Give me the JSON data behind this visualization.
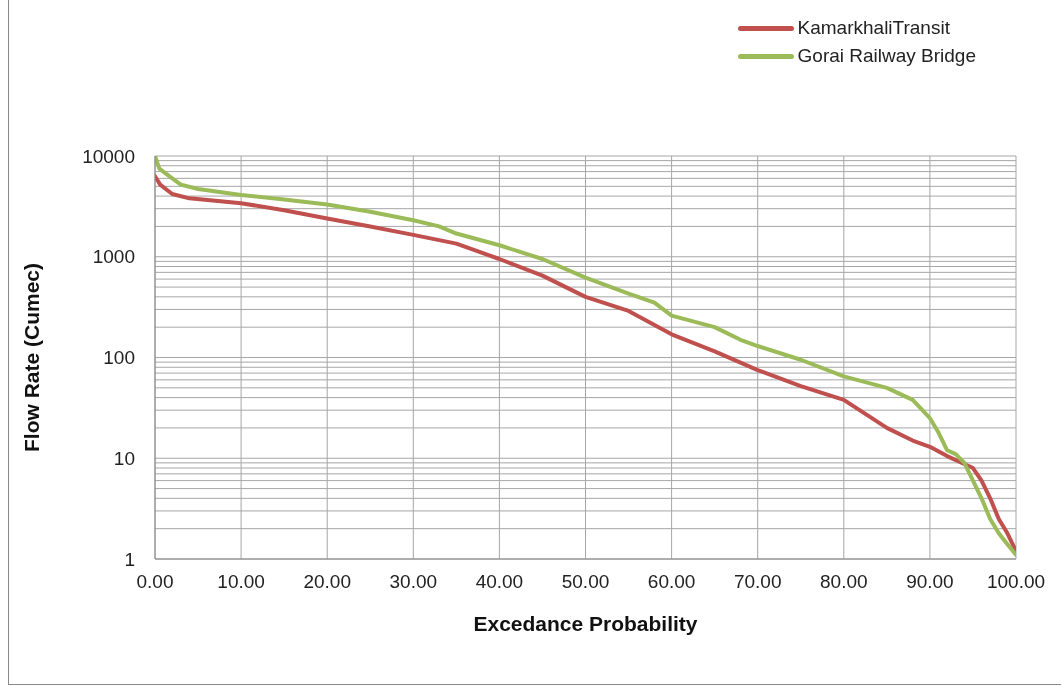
{
  "chart_data": {
    "type": "line",
    "xlabel": "Excedance Probability",
    "ylabel": "Flow Rate (Cumec)",
    "log": "y",
    "grid": true,
    "legend": "top right",
    "marker": "none",
    "line_style": "solid",
    "xlim": [
      0,
      100
    ],
    "xticks": [
      {
        "value": 0,
        "label": "0.00"
      },
      {
        "value": 10,
        "label": "10.00"
      },
      {
        "value": 20,
        "label": "20.00"
      },
      {
        "value": 30,
        "label": "30.00"
      },
      {
        "value": 40,
        "label": "40.00"
      },
      {
        "value": 50,
        "label": "50.00"
      },
      {
        "value": 60,
        "label": "60.00"
      },
      {
        "value": 70,
        "label": "70.00"
      },
      {
        "value": 80,
        "label": "80.00"
      },
      {
        "value": 90,
        "label": "90.00"
      },
      {
        "value": 100,
        "label": "100.00"
      }
    ],
    "ylim": [
      1,
      10000
    ],
    "yticks": [
      1,
      {
        "value": 2,
        "label": null
      },
      {
        "value": 3,
        "label": null
      },
      {
        "value": 4,
        "label": null
      },
      {
        "value": 5,
        "label": null
      },
      {
        "value": 6,
        "label": null
      },
      {
        "value": 7,
        "label": null
      },
      {
        "value": 8,
        "label": null
      },
      {
        "value": 9,
        "label": null
      },
      10,
      {
        "value": 20,
        "label": null
      },
      {
        "value": 30,
        "label": null
      },
      {
        "value": 40,
        "label": null
      },
      {
        "value": 50,
        "label": null
      },
      {
        "value": 60,
        "label": null
      },
      {
        "value": 70,
        "label": null
      },
      {
        "value": 80,
        "label": null
      },
      {
        "value": 90,
        "label": null
      },
      100,
      {
        "value": 200,
        "label": null
      },
      {
        "value": 300,
        "label": null
      },
      {
        "value": 400,
        "label": null
      },
      {
        "value": 500,
        "label": null
      },
      {
        "value": 600,
        "label": null
      },
      {
        "value": 700,
        "label": null
      },
      {
        "value": 800,
        "label": null
      },
      {
        "value": 900,
        "label": null
      },
      1000,
      {
        "value": 2000,
        "label": null
      },
      {
        "value": 3000,
        "label": null
      },
      {
        "value": 4000,
        "label": null
      },
      {
        "value": 5000,
        "label": null
      },
      {
        "value": 6000,
        "label": null
      },
      {
        "value": 7000,
        "label": null
      },
      {
        "value": 8000,
        "label": null
      },
      {
        "value": 9000,
        "label": null
      },
      10000
    ],
    "series": [
      {
        "name": "KamarkhaliTransit",
        "color": "#c0504d",
        "x": [
          0,
          0.6,
          2,
          4,
          10,
          15,
          20,
          25,
          30,
          35,
          40,
          45,
          50,
          55,
          60,
          65,
          70,
          75,
          80,
          85,
          88,
          90,
          92,
          95,
          96,
          97,
          98,
          99,
          100
        ],
        "values": [
          6300,
          5200,
          4200,
          3800,
          3400,
          2900,
          2400,
          2000,
          1650,
          1350,
          950,
          650,
          400,
          290,
          170,
          115,
          75,
          52,
          38,
          20,
          15,
          13,
          10.5,
          8,
          6,
          4,
          2.5,
          1.8,
          1.2
        ]
      },
      {
        "name": "Gorai Railway Bridge",
        "color": "#9bbb59",
        "x": [
          0,
          0.5,
          2,
          3,
          5,
          10,
          15,
          20,
          25,
          30,
          33,
          35,
          40,
          45,
          50,
          55,
          58,
          60,
          65,
          68,
          70,
          75,
          80,
          85,
          88,
          90,
          91,
          92,
          93,
          94,
          95,
          96,
          97,
          98,
          99,
          100
        ],
        "values": [
          10000,
          7500,
          6000,
          5200,
          4700,
          4100,
          3700,
          3300,
          2800,
          2300,
          2000,
          1700,
          1300,
          950,
          620,
          430,
          350,
          260,
          200,
          150,
          130,
          95,
          65,
          50,
          38,
          25,
          18,
          12,
          11,
          9,
          6,
          4,
          2.5,
          1.8,
          1.4,
          1.1
        ]
      }
    ]
  }
}
